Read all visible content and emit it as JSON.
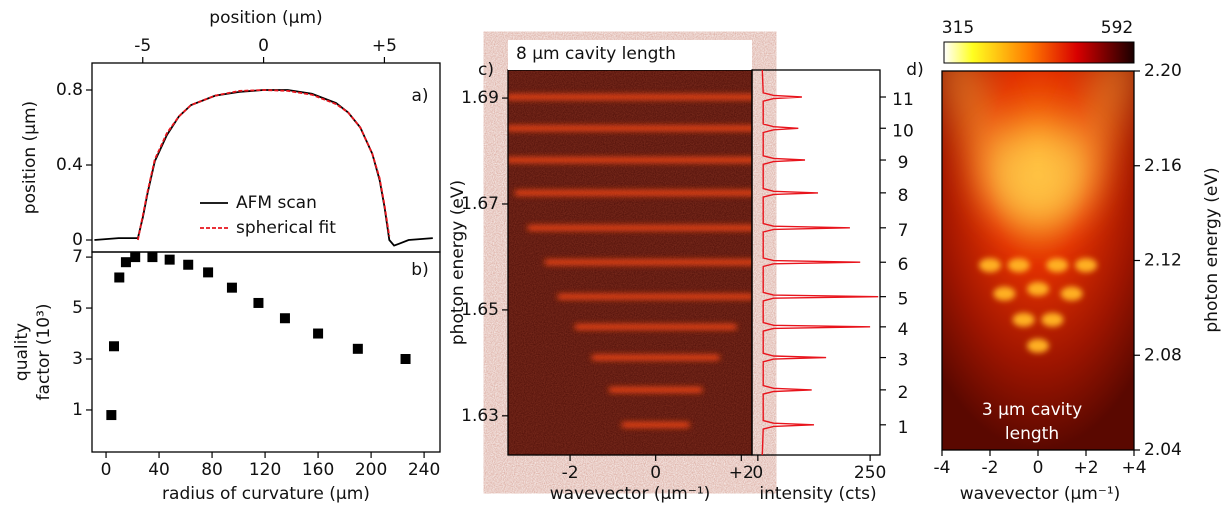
{
  "chart_data": [
    {
      "type": "line",
      "panel_label": "a)",
      "xlabel": "position (µm)",
      "ylabel": "position (µm)",
      "x": [
        -7,
        -6,
        -5.2,
        -5.0,
        -4.8,
        -4.5,
        -4,
        -3.5,
        -3,
        -2,
        -1,
        0,
        1,
        2,
        3,
        3.5,
        4,
        4.5,
        4.8,
        5.0,
        5.2,
        5.4,
        5.6,
        6,
        7
      ],
      "xlim": [
        -7.1,
        7.3
      ],
      "xticks": [
        -5,
        0,
        {
          "value": 5,
          "label": "+5"
        }
      ],
      "ylim": [
        -0.064,
        0.944
      ],
      "yticks": [
        0,
        0.4,
        0.8
      ],
      "series": [
        {
          "name": "AFM scan",
          "color": "#000000",
          "values": [
            0,
            0.01,
            0.01,
            0.12,
            0.25,
            0.42,
            0.56,
            0.66,
            0.72,
            0.77,
            0.79,
            0.8,
            0.8,
            0.78,
            0.73,
            0.68,
            0.6,
            0.46,
            0.32,
            0.18,
            0.0,
            -0.03,
            -0.02,
            0,
            0.01
          ]
        },
        {
          "name": "spherical fit",
          "color": "#e8141c",
          "dash": true,
          "values": [
            null,
            null,
            0.0,
            0.13,
            0.26,
            0.43,
            0.57,
            0.66,
            0.72,
            0.77,
            0.795,
            0.8,
            0.795,
            0.775,
            0.725,
            0.68,
            0.6,
            0.46,
            0.33,
            0.19,
            0.02,
            null,
            null,
            null,
            null
          ]
        }
      ]
    },
    {
      "type": "scatter",
      "panel_label": "b)",
      "xlabel": "radius of curvature (µm)",
      "ylabel": [
        "quality",
        "factor (10³)"
      ],
      "x": [
        4,
        6,
        10,
        15,
        22,
        35,
        48,
        62,
        77,
        95,
        115,
        135,
        160,
        190,
        226
      ],
      "values": [
        0.8,
        3.5,
        6.2,
        6.8,
        7.0,
        7.0,
        6.9,
        6.7,
        6.4,
        5.8,
        5.2,
        4.6,
        4.0,
        3.4,
        3.0
      ],
      "color": "#000000",
      "xlim": [
        -10.6,
        252
      ],
      "xticks": [
        0,
        40,
        80,
        120,
        160,
        200,
        240
      ],
      "ylim": [
        -0.65,
        7.2
      ],
      "yticks": [
        1,
        3,
        5,
        7
      ]
    },
    {
      "type": "dispersion",
      "panel_label": "c)",
      "title": "8 µm cavity length",
      "xlabel": "wavevector (µm⁻¹)",
      "ylabel": "photon energy (eV)",
      "xlim": [
        -3.45,
        2.25
      ],
      "xticks": [
        -2,
        0,
        {
          "value": 2,
          "label": "+2"
        }
      ],
      "ylim": [
        1.6226,
        1.6953
      ],
      "yticks": [
        1.63,
        1.65,
        1.67,
        1.69
      ],
      "modes": {
        "labels": [
          1,
          2,
          3,
          4,
          5,
          6,
          7,
          8,
          9,
          10,
          11
        ],
        "energies": [
          1.6283,
          1.6349,
          1.641,
          1.6468,
          1.6525,
          1.659,
          1.6655,
          1.6721,
          1.6783,
          1.6843,
          1.6902
        ],
        "k_halfwidth": [
          0.8,
          1.1,
          1.5,
          1.9,
          2.3,
          2.6,
          3.0,
          3.3,
          3.5,
          3.5,
          3.5
        ]
      },
      "spectrum": {
        "xlabel": "intensity (cts)",
        "xlim": [
          -13,
          272
        ],
        "xticks": [
          0,
          250
        ],
        "color": "#e8141c",
        "energy": [
          1.6226,
          1.6275,
          1.628,
          1.6283,
          1.6286,
          1.6291,
          1.6341,
          1.6346,
          1.6349,
          1.6352,
          1.6357,
          1.6402,
          1.6407,
          1.641,
          1.6413,
          1.6418,
          1.646,
          1.6465,
          1.6468,
          1.6471,
          1.6476,
          1.6517,
          1.6522,
          1.6525,
          1.6528,
          1.6533,
          1.6582,
          1.6587,
          1.659,
          1.6593,
          1.6598,
          1.6647,
          1.6652,
          1.6655,
          1.6658,
          1.6663,
          1.6713,
          1.6718,
          1.6721,
          1.6724,
          1.6729,
          1.6775,
          1.678,
          1.6783,
          1.6786,
          1.6791,
          1.6835,
          1.684,
          1.6843,
          1.6846,
          1.6851,
          1.6894,
          1.6899,
          1.6902,
          1.6905,
          1.691,
          1.6953
        ],
        "intensity": [
          10,
          12,
          35,
          125,
          35,
          12,
          12,
          35,
          120,
          35,
          12,
          12,
          35,
          152,
          35,
          12,
          12,
          35,
          250,
          35,
          12,
          12,
          35,
          268,
          35,
          12,
          12,
          35,
          228,
          35,
          12,
          12,
          35,
          205,
          35,
          12,
          12,
          35,
          134,
          35,
          12,
          12,
          35,
          105,
          35,
          12,
          12,
          35,
          90,
          35,
          12,
          12,
          35,
          98,
          35,
          12,
          10
        ]
      }
    },
    {
      "type": "heatmap",
      "panel_label": "d)",
      "caption": [
        "3 µm cavity",
        "length"
      ],
      "xlabel": "wavevector (µm⁻¹)",
      "ylabel": "photon energy (eV)",
      "xlim": [
        -4,
        4
      ],
      "xticks": [
        -4,
        -2,
        0,
        {
          "value": 2,
          "label": "+2"
        },
        {
          "value": 4,
          "label": "+4"
        }
      ],
      "ylim": [
        2.04,
        2.2
      ],
      "yticks": [
        2.04,
        2.08,
        2.12,
        2.16,
        {
          "value": 2.2,
          "label": "2.20"
        }
      ],
      "clim": [
        315,
        592
      ],
      "spots": {
        "k": [
          0,
          -0.6,
          0.6,
          -1.4,
          1.4,
          0,
          -2.0,
          2.0,
          -0.8,
          0.8
        ],
        "energy": [
          2.084,
          2.095,
          2.095,
          2.106,
          2.106,
          2.108,
          2.118,
          2.118,
          2.118,
          2.118
        ]
      }
    }
  ]
}
